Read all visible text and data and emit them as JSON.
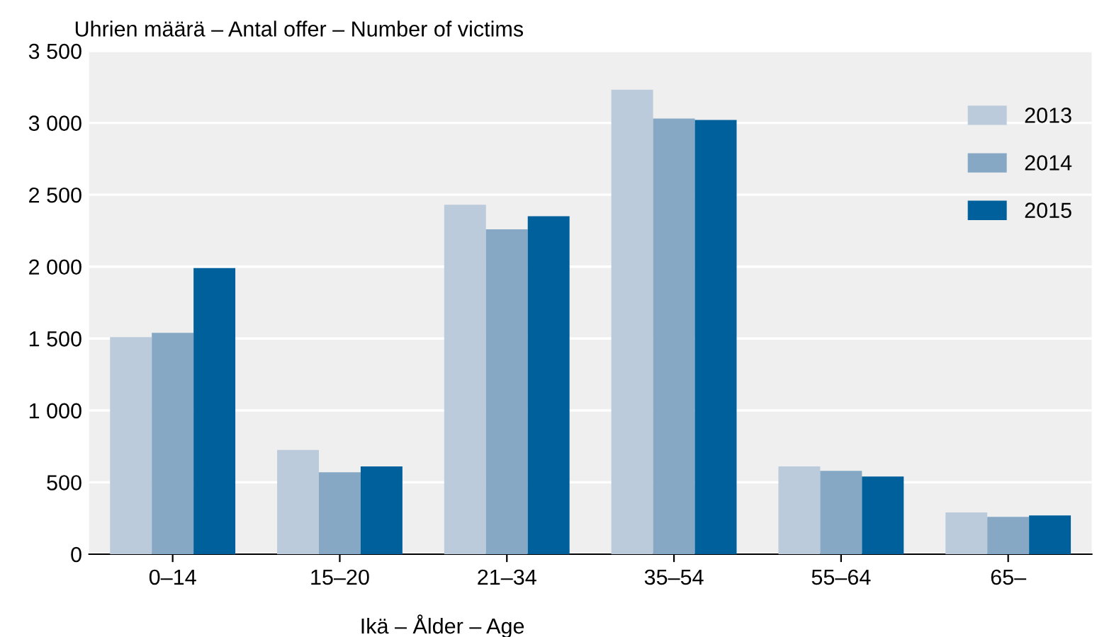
{
  "chart_data": {
    "type": "bar",
    "ylabel": "Uhrien määrä – Antal offer – Number of victims",
    "xlabel": "Ikä – Ålder – Age",
    "categories": [
      "0–14",
      "15–20",
      "21–34",
      "35–54",
      "55–64",
      "65–"
    ],
    "series": [
      {
        "name": "2013",
        "color": "#bccbdb",
        "values": [
          1510,
          725,
          2430,
          3230,
          610,
          290
        ]
      },
      {
        "name": "2014",
        "color": "#86a8c4",
        "values": [
          1540,
          570,
          2260,
          3030,
          580,
          260
        ]
      },
      {
        "name": "2015",
        "color": "#00609c",
        "values": [
          1990,
          610,
          2350,
          3020,
          540,
          270
        ]
      }
    ],
    "ylim": [
      0,
      3500
    ],
    "yticks": [
      0,
      {
        "value": 500,
        "label": "500"
      },
      {
        "value": 1000,
        "label": "1 000"
      },
      {
        "value": 1500,
        "label": "1 500"
      },
      {
        "value": 2000,
        "label": "2 000"
      },
      {
        "value": 2500,
        "label": "2 500"
      },
      {
        "value": 3000,
        "label": "3 000"
      },
      {
        "value": 3500,
        "label": "3 500"
      }
    ],
    "grid": "y",
    "legend": "top right"
  }
}
